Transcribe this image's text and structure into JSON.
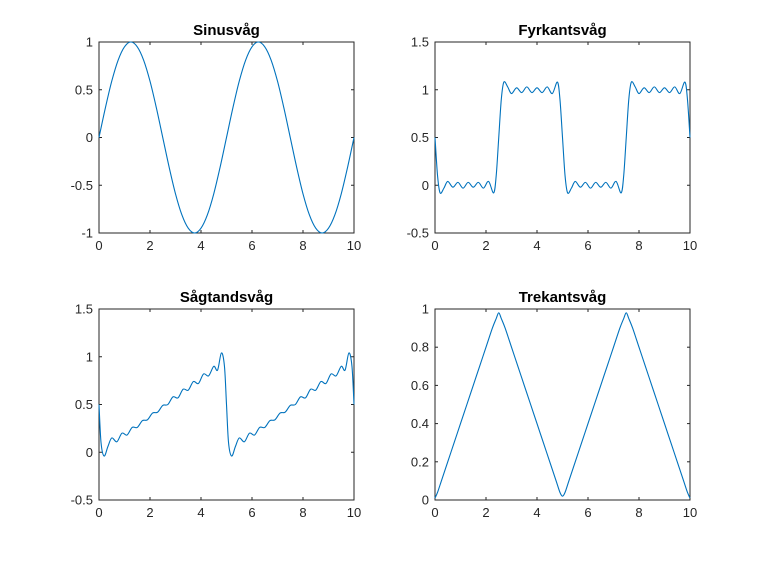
{
  "figure": {
    "background": "#ffffff"
  },
  "chart_data": [
    {
      "type": "line",
      "title": "Sinusvåg",
      "xlabel": "",
      "ylabel": "",
      "xlim": [
        0,
        10
      ],
      "ylim": [
        -1,
        1
      ],
      "xticks": [
        0,
        2,
        4,
        6,
        8,
        10
      ],
      "xtick_labels": [
        "0",
        "2",
        "4",
        "6",
        "8",
        "10"
      ],
      "yticks": [
        -1,
        -0.5,
        0,
        0.5,
        1
      ],
      "ytick_labels": [
        "-1",
        "-0.5",
        "0",
        "0.5",
        "1"
      ],
      "grid": false,
      "legend": "none",
      "series": [
        {
          "color": "#0072bd",
          "x": [
            0,
            0.25,
            0.5,
            0.75,
            1,
            1.25,
            1.5,
            1.75,
            2,
            2.25,
            2.5,
            2.75,
            3,
            3.25,
            3.5,
            3.75,
            4,
            4.25,
            4.5,
            4.75,
            5,
            5.25,
            5.5,
            5.75,
            6,
            6.25,
            6.5,
            6.75,
            7,
            7.25,
            7.5,
            7.75,
            8,
            8.25,
            8.5,
            8.75,
            9,
            9.25,
            9.5,
            9.75,
            10
          ],
          "y": [
            0,
            0.31,
            0.59,
            0.81,
            0.95,
            1,
            0.95,
            0.81,
            0.59,
            0.31,
            0,
            -0.31,
            -0.59,
            -0.81,
            -0.95,
            -1,
            -0.95,
            -0.81,
            -0.59,
            -0.31,
            0,
            0.31,
            0.59,
            0.81,
            0.95,
            1,
            0.95,
            0.81,
            0.59,
            0.31,
            0,
            -0.31,
            -0.59,
            -0.81,
            -0.95,
            -1,
            -0.95,
            -0.81,
            -0.59,
            -0.31,
            0
          ]
        }
      ]
    },
    {
      "type": "line",
      "title": "Fyrkantsvåg",
      "xlabel": "",
      "ylabel": "",
      "xlim": [
        0,
        10
      ],
      "ylim": [
        -0.5,
        1.5
      ],
      "xticks": [
        0,
        2,
        4,
        6,
        8,
        10
      ],
      "xtick_labels": [
        "0",
        "2",
        "4",
        "6",
        "8",
        "10"
      ],
      "yticks": [
        -0.5,
        0,
        0.5,
        1,
        1.5
      ],
      "ytick_labels": [
        "-0.5",
        "0",
        "0.5",
        "1",
        "1.5"
      ],
      "grid": false,
      "legend": "none",
      "series": [
        {
          "color": "#0072bd",
          "x": [
            0,
            0.1,
            0.2,
            0.35,
            0.5,
            0.7,
            0.9,
            1.1,
            1.3,
            1.5,
            1.7,
            1.9,
            2.1,
            2.3,
            2.4,
            2.5,
            2.6,
            2.7,
            2.85,
            3.0,
            3.2,
            3.4,
            3.6,
            3.8,
            4.0,
            4.2,
            4.4,
            4.6,
            4.8,
            4.9,
            5.0,
            5.1,
            5.2,
            5.35,
            5.5,
            5.7,
            5.9,
            6.1,
            6.3,
            6.5,
            6.7,
            6.9,
            7.1,
            7.3,
            7.4,
            7.5,
            7.6,
            7.7,
            7.85,
            8.0,
            8.2,
            8.4,
            8.6,
            8.8,
            9.0,
            9.2,
            9.4,
            9.6,
            9.8,
            9.9,
            10.0
          ],
          "y": [
            0.5,
            0.1,
            -0.08,
            -0.03,
            0.04,
            -0.02,
            0.03,
            -0.03,
            0.03,
            -0.02,
            0.03,
            -0.03,
            0.04,
            -0.08,
            0.1,
            0.5,
            0.9,
            1.08,
            1.03,
            0.96,
            1.02,
            0.97,
            1.03,
            0.97,
            1.02,
            0.97,
            1.03,
            0.96,
            1.08,
            0.9,
            0.5,
            0.1,
            -0.08,
            -0.03,
            0.04,
            -0.02,
            0.03,
            -0.03,
            0.03,
            -0.02,
            0.03,
            -0.03,
            0.04,
            -0.08,
            0.1,
            0.5,
            0.9,
            1.08,
            1.03,
            0.96,
            1.02,
            0.97,
            1.03,
            0.97,
            1.02,
            0.97,
            1.03,
            0.96,
            1.08,
            0.9,
            0.5
          ]
        }
      ]
    },
    {
      "type": "line",
      "title": "Sågtandsvåg",
      "xlabel": "",
      "ylabel": "",
      "xlim": [
        0,
        10
      ],
      "ylim": [
        -0.5,
        1.5
      ],
      "xticks": [
        0,
        2,
        4,
        6,
        8,
        10
      ],
      "xtick_labels": [
        "0",
        "2",
        "4",
        "6",
        "8",
        "10"
      ],
      "yticks": [
        -0.5,
        0,
        0.5,
        1,
        1.5
      ],
      "ytick_labels": [
        "-0.5",
        "0",
        "0.5",
        "1",
        "1.5"
      ],
      "grid": false,
      "legend": "none",
      "series": [
        {
          "color": "#0072bd",
          "x": [
            0,
            0.08,
            0.2,
            0.35,
            0.5,
            0.7,
            0.9,
            1.1,
            1.3,
            1.5,
            1.7,
            1.9,
            2.1,
            2.3,
            2.5,
            2.7,
            2.9,
            3.1,
            3.3,
            3.5,
            3.7,
            3.9,
            4.1,
            4.3,
            4.5,
            4.65,
            4.8,
            4.92,
            5.0,
            5.08,
            5.2,
            5.35,
            5.5,
            5.7,
            5.9,
            6.1,
            6.3,
            6.5,
            6.7,
            6.9,
            7.1,
            7.3,
            7.5,
            7.7,
            7.9,
            8.1,
            8.3,
            8.5,
            8.7,
            8.9,
            9.1,
            9.3,
            9.5,
            9.65,
            9.8,
            9.92,
            10.0
          ],
          "y": [
            0.5,
            0.1,
            -0.04,
            0.06,
            0.15,
            0.11,
            0.2,
            0.18,
            0.26,
            0.26,
            0.33,
            0.34,
            0.41,
            0.42,
            0.49,
            0.5,
            0.58,
            0.57,
            0.66,
            0.65,
            0.74,
            0.72,
            0.82,
            0.8,
            0.9,
            0.86,
            1.04,
            0.9,
            0.5,
            0.1,
            -0.04,
            0.06,
            0.15,
            0.11,
            0.2,
            0.18,
            0.26,
            0.26,
            0.33,
            0.34,
            0.41,
            0.42,
            0.49,
            0.5,
            0.58,
            0.57,
            0.66,
            0.65,
            0.74,
            0.72,
            0.82,
            0.8,
            0.9,
            0.86,
            1.04,
            0.9,
            0.5
          ]
        }
      ]
    },
    {
      "type": "line",
      "title": "Trekantsvåg",
      "xlabel": "",
      "ylabel": "",
      "xlim": [
        0,
        10
      ],
      "ylim": [
        0,
        1
      ],
      "xticks": [
        0,
        2,
        4,
        6,
        8,
        10
      ],
      "xtick_labels": [
        "0",
        "2",
        "4",
        "6",
        "8",
        "10"
      ],
      "yticks": [
        0,
        0.2,
        0.4,
        0.6,
        0.8,
        1
      ],
      "ytick_labels": [
        "0",
        "0.2",
        "0.4",
        "0.6",
        "0.8",
        "1"
      ],
      "grid": false,
      "legend": "none",
      "series": [
        {
          "color": "#0072bd",
          "x": [
            0,
            0.1,
            0.25,
            0.5,
            0.75,
            1,
            1.25,
            1.5,
            1.75,
            2,
            2.25,
            2.4,
            2.5,
            2.6,
            2.75,
            3,
            3.25,
            3.5,
            3.75,
            4,
            4.25,
            4.5,
            4.75,
            4.9,
            5.0,
            5.1,
            5.25,
            5.5,
            5.75,
            6,
            6.25,
            6.5,
            6.75,
            7,
            7.25,
            7.4,
            7.5,
            7.6,
            7.75,
            8,
            8.25,
            8.5,
            8.75,
            9,
            9.25,
            9.5,
            9.75,
            9.9,
            10.0
          ],
          "y": [
            0.01,
            0.04,
            0.1,
            0.2,
            0.3,
            0.4,
            0.5,
            0.6,
            0.7,
            0.8,
            0.9,
            0.95,
            0.98,
            0.95,
            0.9,
            0.8,
            0.7,
            0.6,
            0.5,
            0.4,
            0.3,
            0.2,
            0.1,
            0.04,
            0.02,
            0.04,
            0.1,
            0.2,
            0.3,
            0.4,
            0.5,
            0.6,
            0.7,
            0.8,
            0.9,
            0.95,
            0.98,
            0.95,
            0.9,
            0.8,
            0.7,
            0.6,
            0.5,
            0.4,
            0.3,
            0.2,
            0.1,
            0.04,
            0.01
          ]
        }
      ]
    }
  ]
}
